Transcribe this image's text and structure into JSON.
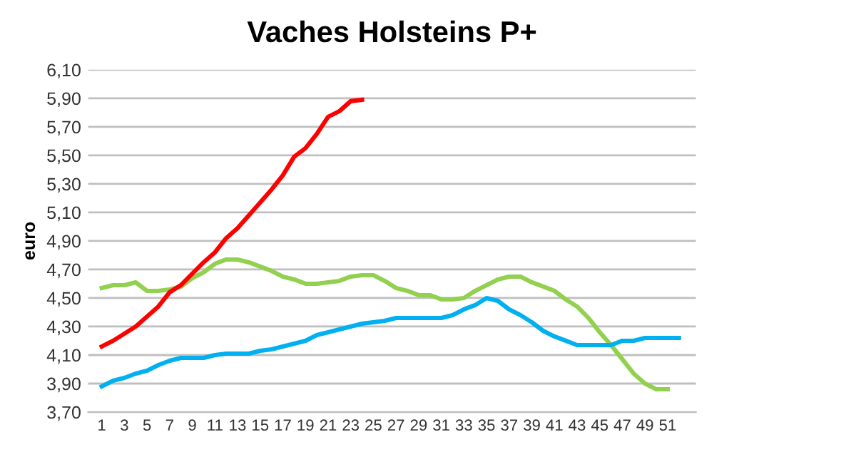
{
  "chart_data": {
    "type": "line",
    "title": "Vaches Holsteins P+",
    "ylabel": "euro",
    "x": [
      1,
      2,
      3,
      4,
      5,
      6,
      7,
      8,
      9,
      10,
      11,
      12,
      13,
      14,
      15,
      16,
      17,
      18,
      19,
      20,
      21,
      22,
      23,
      24,
      25,
      26,
      27,
      28,
      29,
      30,
      31,
      32,
      33,
      34,
      35,
      36,
      37,
      38,
      39,
      40,
      41,
      42,
      43,
      44,
      45,
      46,
      47,
      48,
      49,
      50,
      51,
      52
    ],
    "series": [
      {
        "color": "#92d050",
        "values": [
          4.57,
          4.59,
          4.59,
          4.61,
          4.55,
          4.55,
          4.56,
          4.58,
          4.64,
          4.68,
          4.74,
          4.77,
          4.77,
          4.75,
          4.72,
          4.69,
          4.65,
          4.63,
          4.6,
          4.6,
          4.61,
          4.62,
          4.65,
          4.66,
          4.66,
          4.62,
          4.57,
          4.55,
          4.52,
          4.52,
          4.49,
          4.49,
          4.5,
          4.55,
          4.59,
          4.63,
          4.65,
          4.65,
          4.61,
          4.58,
          4.55,
          4.49,
          4.44,
          4.36,
          4.26,
          4.17,
          4.07,
          3.97,
          3.9,
          3.86,
          3.86,
          null
        ]
      },
      {
        "color": "#00b0f0",
        "values": [
          3.88,
          3.92,
          3.94,
          3.97,
          3.99,
          4.03,
          4.06,
          4.08,
          4.08,
          4.08,
          4.1,
          4.11,
          4.11,
          4.11,
          4.13,
          4.14,
          4.16,
          4.18,
          4.2,
          4.24,
          4.26,
          4.28,
          4.3,
          4.32,
          4.33,
          4.34,
          4.36,
          4.36,
          4.36,
          4.36,
          4.36,
          4.38,
          4.42,
          4.45,
          4.5,
          4.48,
          4.42,
          4.38,
          4.33,
          4.27,
          4.23,
          4.2,
          4.17,
          4.17,
          4.17,
          4.17,
          4.2,
          4.2,
          4.22,
          4.22,
          4.22,
          4.22
        ]
      },
      {
        "color": "#ff0000",
        "values": [
          4.16,
          4.2,
          4.25,
          4.3,
          4.37,
          4.44,
          4.54,
          4.59,
          4.67,
          4.75,
          4.82,
          4.92,
          4.99,
          5.08,
          5.17,
          5.26,
          5.36,
          5.49,
          5.55,
          5.65,
          5.77,
          5.81,
          5.88,
          5.89,
          null,
          null,
          null,
          null,
          null,
          null,
          null,
          null,
          null,
          null,
          null,
          null,
          null,
          null,
          null,
          null,
          null,
          null,
          null,
          null,
          null,
          null,
          null,
          null,
          null,
          null,
          null,
          null
        ]
      }
    ],
    "xlim": [
      -0.2,
      53.5
    ],
    "xticks": [
      1,
      3,
      5,
      7,
      9,
      11,
      13,
      15,
      17,
      19,
      21,
      23,
      25,
      27,
      29,
      31,
      33,
      35,
      37,
      39,
      41,
      43,
      45,
      47,
      49,
      51
    ],
    "ylim": [
      3.7,
      6.1
    ],
    "yticks": [
      {
        "value": 3.7,
        "label": "3,70"
      },
      {
        "value": 3.9,
        "label": "3,90"
      },
      {
        "value": 4.1,
        "label": "4,10"
      },
      {
        "value": 4.3,
        "label": "4,30"
      },
      {
        "value": 4.5,
        "label": "4,50"
      },
      {
        "value": 4.7,
        "label": "4,70"
      },
      {
        "value": 4.9,
        "label": "4,90"
      },
      {
        "value": 5.1,
        "label": "5,10"
      },
      {
        "value": 5.3,
        "label": "5,30"
      },
      {
        "value": 5.5,
        "label": "5,50"
      },
      {
        "value": 5.7,
        "label": "5,70"
      },
      {
        "value": 5.9,
        "label": "5,90"
      },
      {
        "value": 6.1,
        "label": "6,10"
      }
    ],
    "grid": "y"
  }
}
